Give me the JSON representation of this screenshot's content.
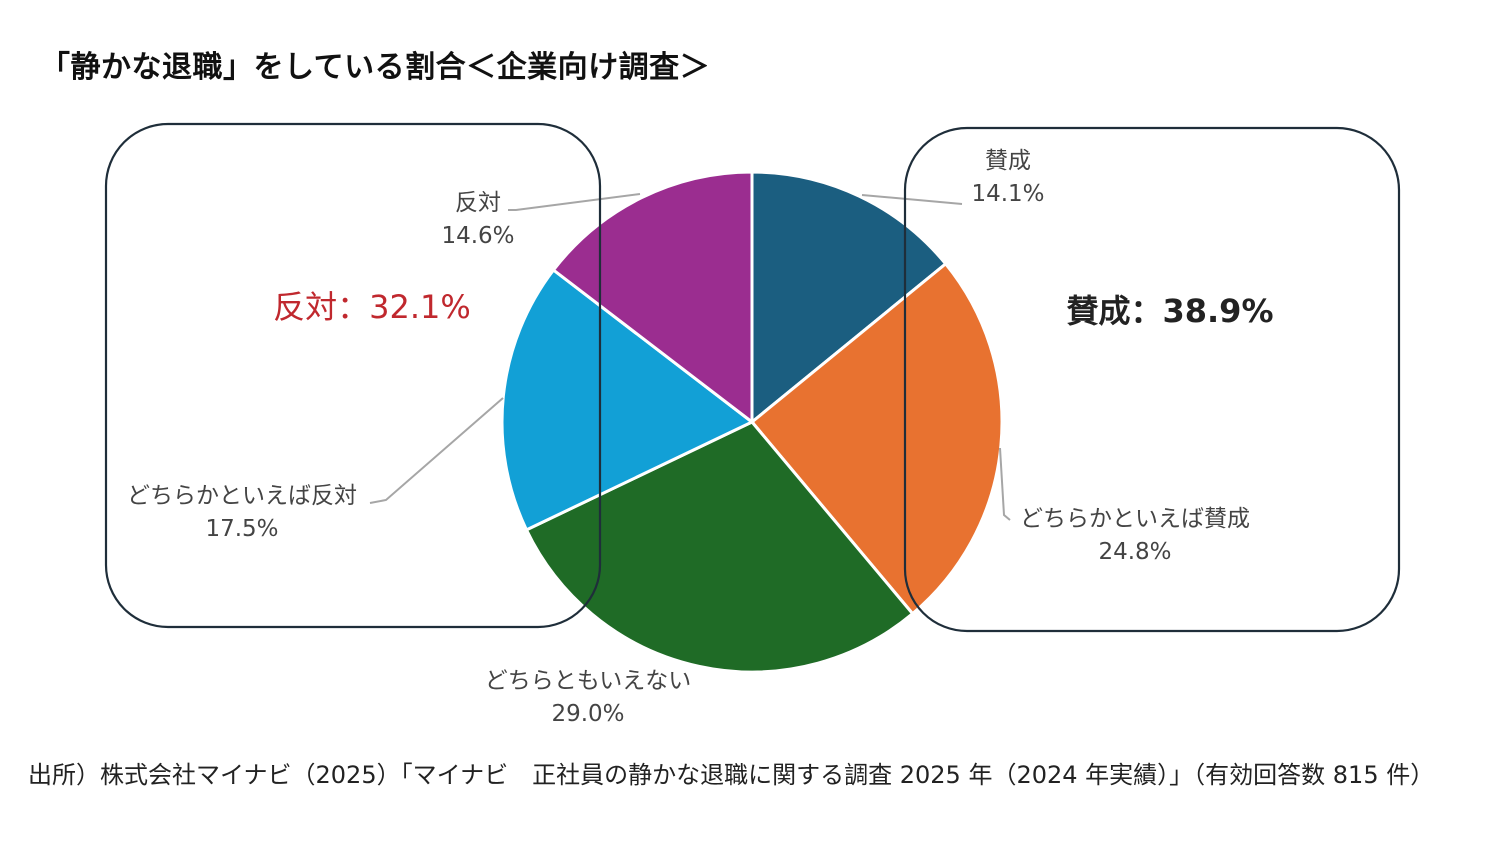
{
  "chart_data": {
    "type": "pie",
    "title": "「静かな退職」をしている割合＜企業向け調査＞",
    "slices": [
      {
        "label": "賛成",
        "value": 14.1,
        "value_label": "14.1%",
        "color": "#1b5e80"
      },
      {
        "label": "どちらかといえば賛成",
        "value": 24.8,
        "value_label": "24.8%",
        "color": "#e87230"
      },
      {
        "label": "どちらともいえない",
        "value": 29.0,
        "value_label": "29.0%",
        "color": "#1f6b26"
      },
      {
        "label": "どちらかといえば反対",
        "value": 17.5,
        "value_label": "17.5%",
        "color": "#12a0d6"
      },
      {
        "label": "反対",
        "value": 14.6,
        "value_label": "14.6%",
        "color": "#9b2d90"
      }
    ],
    "group_labels": {
      "agree": {
        "text": "賛成：38.9%",
        "color": "#222222"
      },
      "disagree": {
        "text": "反対：32.1%",
        "color": "#c0282e"
      }
    },
    "start_angle": "12 o'clock",
    "direction": "clockwise"
  },
  "source_note": "出所）株式会社マイナビ（2025）「マイナビ　正社員の静かな退職に関する調査 2025 年（2024 年実績）」（有効回答数 815 件）"
}
